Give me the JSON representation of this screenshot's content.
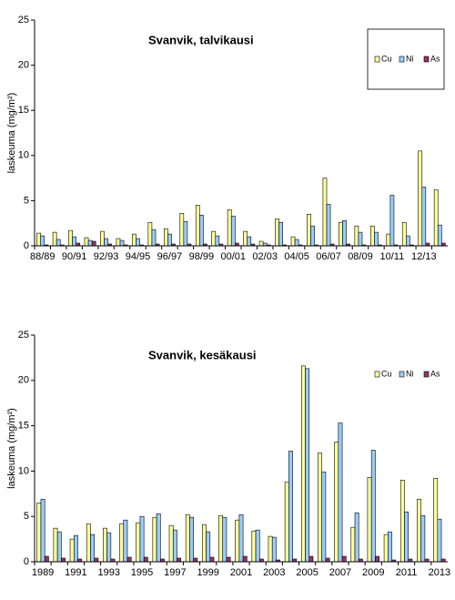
{
  "chart_data": [
    {
      "type": "bar",
      "title": "Svanvik, talvikausi",
      "y_label": "laskeuma (mg/m²)",
      "categories": [
        "88/89",
        null,
        "90/91",
        null,
        "92/93",
        null,
        "94/95",
        null,
        "96/97",
        null,
        "98/99",
        null,
        "00/01",
        null,
        "02/03",
        null,
        "04/05",
        null,
        "06/07",
        null,
        "08/09",
        null,
        "10/11",
        null,
        "12/13",
        null
      ],
      "series": [
        {
          "name": "Cu",
          "color": "#ffff99",
          "values": [
            1.4,
            1.5,
            1.7,
            0.9,
            1.6,
            0.8,
            1.3,
            2.6,
            1.9,
            3.6,
            4.5,
            1.6,
            4.0,
            1.6,
            0.5,
            3.0,
            1.0,
            3.5,
            7.5,
            2.6,
            2.2,
            2.2,
            1.3,
            2.6,
            10.5,
            6.2
          ]
        },
        {
          "name": "Ni",
          "color": "#99ccff",
          "values": [
            1.1,
            0.7,
            1.0,
            0.6,
            0.8,
            0.6,
            0.8,
            1.8,
            1.3,
            2.7,
            3.4,
            1.1,
            3.3,
            1.0,
            0.3,
            2.6,
            0.7,
            2.2,
            4.6,
            2.8,
            1.5,
            1.5,
            5.6,
            1.1,
            6.5,
            2.3
          ]
        },
        {
          "name": "As",
          "color": "#993366",
          "values": [
            0.1,
            0.1,
            0.3,
            0.5,
            0.2,
            0.1,
            0.1,
            0.2,
            0.2,
            0.2,
            0.2,
            0.2,
            0.3,
            0.2,
            0.1,
            0.1,
            0.1,
            0.1,
            0.2,
            0.2,
            0.1,
            0.1,
            0.1,
            0.1,
            0.3,
            0.3
          ]
        }
      ],
      "ylim": [
        0,
        25
      ],
      "yticks": [
        0,
        5,
        10,
        15,
        20,
        25
      ],
      "grid": false,
      "legend": "upper right",
      "legend_frame": true
    },
    {
      "type": "bar",
      "title": "Svanvik, kesäkausi",
      "y_label": "laskeuma (mg/m²)",
      "categories": [
        "1989",
        null,
        "1991",
        null,
        "1993",
        null,
        "1995",
        null,
        "1997",
        null,
        "1999",
        null,
        "2001",
        null,
        "2003",
        null,
        "2005",
        null,
        "2007",
        null,
        "2009",
        null,
        "2011",
        null,
        "2013"
      ],
      "series": [
        {
          "name": "Cu",
          "color": "#ffff99",
          "values": [
            6.5,
            3.7,
            2.5,
            4.2,
            3.7,
            4.2,
            4.3,
            4.9,
            4.0,
            5.2,
            4.1,
            5.1,
            4.6,
            3.4,
            2.8,
            8.8,
            21.6,
            12.0,
            13.2,
            3.8,
            9.3,
            3.0,
            9.0,
            6.9,
            9.2
          ]
        },
        {
          "name": "Ni",
          "color": "#99ccff",
          "values": [
            6.9,
            3.3,
            2.9,
            3.0,
            3.2,
            4.6,
            5.0,
            5.3,
            3.5,
            4.9,
            3.3,
            4.9,
            5.2,
            3.5,
            2.7,
            12.2,
            21.3,
            9.9,
            15.3,
            5.4,
            12.3,
            3.3,
            5.5,
            5.1,
            4.7
          ]
        },
        {
          "name": "As",
          "color": "#993366",
          "values": [
            0.6,
            0.4,
            0.3,
            0.4,
            0.3,
            0.5,
            0.5,
            0.3,
            0.4,
            0.4,
            0.5,
            0.5,
            0.6,
            0.3,
            0.2,
            0.3,
            0.6,
            0.4,
            0.6,
            0.3,
            0.6,
            0.2,
            0.3,
            0.3,
            0.3
          ]
        }
      ],
      "ylim": [
        0,
        25
      ],
      "yticks": [
        0,
        5,
        10,
        15,
        20,
        25
      ],
      "grid": false,
      "legend": "upper right",
      "legend_frame": false
    }
  ]
}
